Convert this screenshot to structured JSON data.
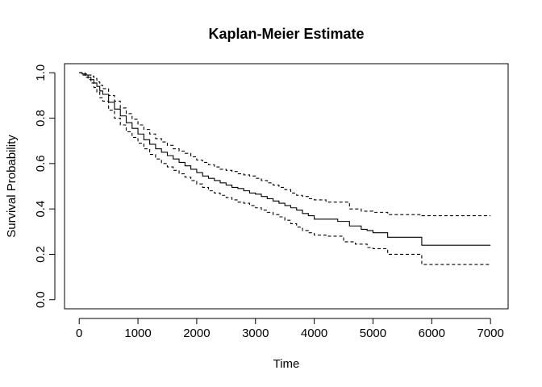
{
  "chart_data": {
    "type": "line",
    "title": "Kaplan-Meier Estimate",
    "xlabel": "Time",
    "ylabel": "Survival Probability",
    "xlim": [
      -250,
      7300
    ],
    "ylim": [
      -0.04,
      1.04
    ],
    "x_ticks": [
      "0",
      "1000",
      "2000",
      "3000",
      "4000",
      "5000",
      "6000",
      "7000"
    ],
    "y_ticks": [
      "0.0",
      "0.2",
      "0.4",
      "0.6",
      "0.8",
      "1.0"
    ],
    "grid": false,
    "series": [
      {
        "role": "estimate",
        "line_style": "solid",
        "x": [
          0,
          50,
          100,
          150,
          200,
          250,
          300,
          350,
          400,
          500,
          600,
          700,
          800,
          900,
          1000,
          1100,
          1200,
          1300,
          1400,
          1500,
          1600,
          1700,
          1800,
          1900,
          2000,
          2100,
          2200,
          2300,
          2400,
          2500,
          2600,
          2700,
          2800,
          2900,
          3000,
          3100,
          3200,
          3300,
          3400,
          3500,
          3600,
          3700,
          3800,
          3900,
          4000,
          4400,
          4600,
          4800,
          4900,
          5000,
          5250,
          5800,
          5830,
          7000
        ],
        "y": [
          1.0,
          0.995,
          0.99,
          0.98,
          0.97,
          0.955,
          0.94,
          0.92,
          0.905,
          0.87,
          0.84,
          0.81,
          0.78,
          0.755,
          0.73,
          0.705,
          0.685,
          0.665,
          0.65,
          0.635,
          0.62,
          0.605,
          0.59,
          0.575,
          0.56,
          0.545,
          0.535,
          0.525,
          0.515,
          0.505,
          0.495,
          0.49,
          0.48,
          0.47,
          0.465,
          0.455,
          0.445,
          0.435,
          0.425,
          0.415,
          0.405,
          0.395,
          0.38,
          0.37,
          0.355,
          0.345,
          0.325,
          0.31,
          0.305,
          0.295,
          0.275,
          0.275,
          0.24,
          0.24
        ]
      },
      {
        "role": "upper confidence bound",
        "line_style": "dashed",
        "x": [
          0,
          50,
          100,
          150,
          200,
          250,
          300,
          350,
          400,
          500,
          600,
          700,
          800,
          900,
          1000,
          1100,
          1200,
          1300,
          1400,
          1500,
          1600,
          1700,
          1800,
          1900,
          2000,
          2100,
          2200,
          2300,
          2400,
          2500,
          2600,
          2700,
          2800,
          2900,
          3000,
          3100,
          3200,
          3300,
          3400,
          3500,
          3600,
          3700,
          3800,
          3900,
          4000,
          4200,
          4400,
          4600,
          4800,
          5000,
          5250,
          5800,
          5830,
          7000
        ],
        "y": [
          1.0,
          1.0,
          0.995,
          0.99,
          0.985,
          0.975,
          0.96,
          0.945,
          0.93,
          0.9,
          0.875,
          0.845,
          0.82,
          0.795,
          0.77,
          0.75,
          0.73,
          0.71,
          0.695,
          0.68,
          0.665,
          0.655,
          0.645,
          0.63,
          0.615,
          0.605,
          0.595,
          0.585,
          0.575,
          0.57,
          0.565,
          0.555,
          0.55,
          0.545,
          0.535,
          0.525,
          0.515,
          0.505,
          0.495,
          0.485,
          0.47,
          0.46,
          0.455,
          0.445,
          0.44,
          0.43,
          0.43,
          0.4,
          0.39,
          0.385,
          0.375,
          0.375,
          0.37,
          0.37
        ]
      },
      {
        "role": "lower confidence bound",
        "line_style": "dashed",
        "x": [
          0,
          50,
          100,
          150,
          200,
          250,
          300,
          350,
          400,
          500,
          600,
          700,
          800,
          900,
          1000,
          1100,
          1200,
          1300,
          1400,
          1500,
          1600,
          1700,
          1800,
          1900,
          2000,
          2100,
          2200,
          2300,
          2400,
          2500,
          2600,
          2700,
          2800,
          2900,
          3000,
          3100,
          3200,
          3300,
          3400,
          3500,
          3600,
          3700,
          3800,
          3900,
          4000,
          4200,
          4500,
          4700,
          4900,
          5000,
          5250,
          5800,
          5830,
          7000
        ],
        "y": [
          1.0,
          0.99,
          0.98,
          0.97,
          0.955,
          0.935,
          0.915,
          0.89,
          0.875,
          0.835,
          0.8,
          0.77,
          0.74,
          0.715,
          0.69,
          0.665,
          0.64,
          0.62,
          0.6,
          0.585,
          0.57,
          0.555,
          0.54,
          0.525,
          0.51,
          0.495,
          0.48,
          0.47,
          0.46,
          0.45,
          0.44,
          0.43,
          0.425,
          0.415,
          0.405,
          0.395,
          0.385,
          0.375,
          0.365,
          0.35,
          0.335,
          0.32,
          0.305,
          0.295,
          0.285,
          0.28,
          0.255,
          0.245,
          0.23,
          0.225,
          0.2,
          0.2,
          0.155,
          0.155
        ]
      }
    ]
  }
}
